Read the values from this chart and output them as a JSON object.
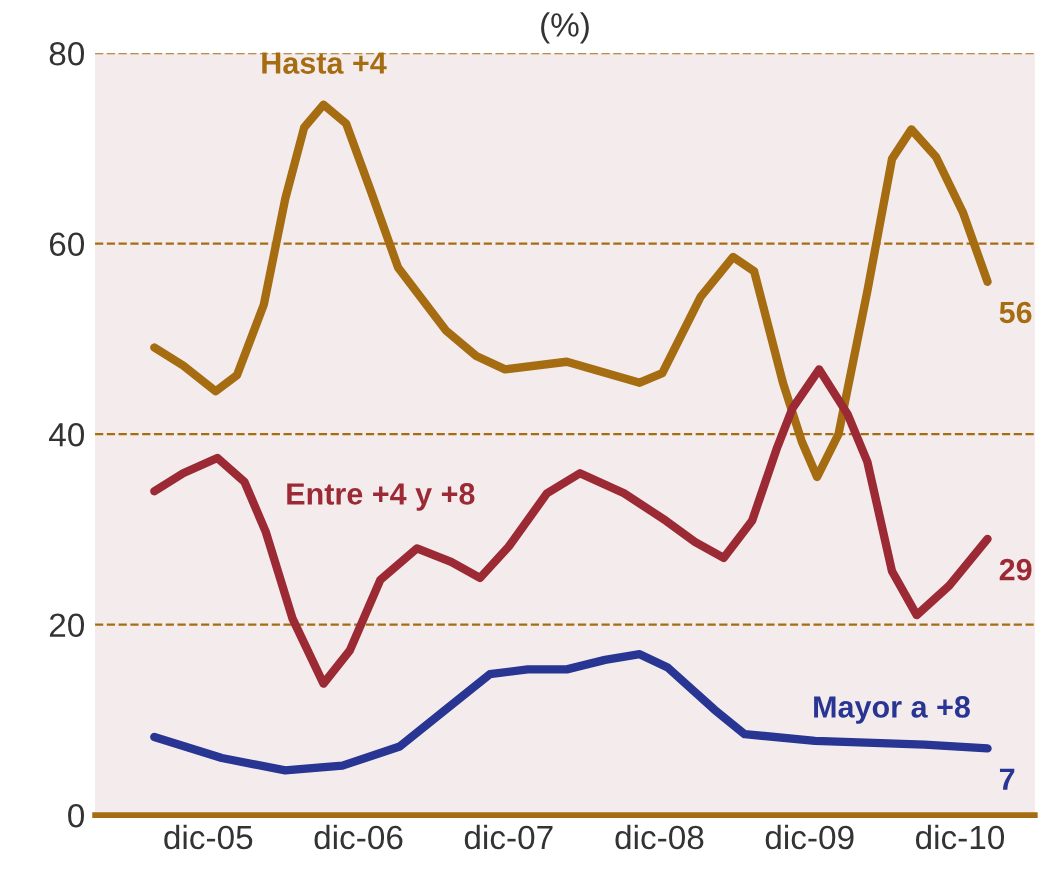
{
  "chart_data": {
    "type": "line",
    "title": "(%)",
    "xlim": [
      "2005-03",
      "2011-06"
    ],
    "xticks": [
      {
        "value": "2005-12",
        "label": "dic-05"
      },
      {
        "value": "2006-12",
        "label": "dic-06"
      },
      {
        "value": "2007-12",
        "label": "dic-07"
      },
      {
        "value": "2008-12",
        "label": "dic-08"
      },
      {
        "value": "2009-12",
        "label": "dic-09"
      },
      {
        "value": "2010-12",
        "label": "dic-10"
      }
    ],
    "ylim": [
      0,
      80
    ],
    "yticks": [
      0,
      20,
      40,
      60,
      80
    ],
    "grid": "y",
    "legend": false,
    "marker": "none",
    "line_style": "solid",
    "series": [
      {
        "name": "Hasta +4",
        "color": "#a66c12",
        "x": [
          "2005-07-23",
          "2005-10-01",
          "2005-12-19",
          "2006-02-09",
          "2006-04-15",
          "2006-06-06",
          "2006-07-22",
          "2006-09-07",
          "2006-11-01",
          "2007-01-01",
          "2007-03-07",
          "2007-07-01",
          "2007-09-13",
          "2007-11-22",
          "2008-04-20",
          "2008-10-14",
          "2008-12-08",
          "2009-03-11",
          "2009-05-29",
          "2009-07-19",
          "2009-09-27",
          "2009-11-12",
          "2009-12-19",
          "2010-02-09",
          "2010-04-20",
          "2010-06-19",
          "2010-08-05",
          "2010-10-04",
          "2010-12-08",
          "2011-02-06"
        ],
        "values": [
          49.1,
          47.2,
          44.5,
          46.2,
          53.6,
          64.7,
          72.2,
          74.6,
          72.6,
          65.4,
          57.5,
          50.9,
          48.2,
          46.8,
          47.6,
          45.4,
          46.4,
          54.4,
          58.6,
          57.1,
          45.4,
          39.2,
          35.5,
          40,
          55,
          68.9,
          72,
          69.1,
          63.3,
          56
        ],
        "value_labels": [
          null,
          null,
          null,
          null,
          null,
          null,
          null,
          null,
          null,
          null,
          null,
          null,
          null,
          null,
          null,
          null,
          null,
          null,
          null,
          null,
          null,
          null,
          null,
          null,
          null,
          null,
          null,
          null,
          null,
          "56"
        ]
      },
      {
        "name": "Entre +4 y +8",
        "color": "#9b2a35",
        "x": [
          "2005-07-23",
          "2005-10-01",
          "2005-12-23",
          "2006-02-27",
          "2006-04-20",
          "2006-06-24",
          "2006-09-07",
          "2006-11-10",
          "2007-01-23",
          "2007-04-22",
          "2007-07-14",
          "2007-09-22",
          "2007-12-01",
          "2008-03-03",
          "2008-05-22",
          "2008-09-06",
          "2008-12-17",
          "2009-02-25",
          "2009-05-06",
          "2009-07-14",
          "2009-09-13",
          "2009-10-20",
          "2009-12-24",
          "2010-03-03",
          "2010-04-20",
          "2010-06-19",
          "2010-08-18",
          "2010-11-05",
          "2011-02-06"
        ],
        "values": [
          34,
          35.9,
          37.5,
          35,
          29.7,
          20.6,
          13.8,
          17.3,
          24.7,
          28,
          26.6,
          24.9,
          28.2,
          33.8,
          35.9,
          33.8,
          30.9,
          28.7,
          27,
          30.9,
          38.6,
          42.7,
          46.8,
          42.1,
          37.1,
          25.6,
          21,
          24.1,
          29
        ],
        "value_labels": [
          null,
          null,
          null,
          null,
          null,
          null,
          null,
          null,
          null,
          null,
          null,
          null,
          null,
          null,
          null,
          null,
          null,
          null,
          null,
          null,
          null,
          null,
          null,
          null,
          null,
          null,
          null,
          null,
          "29"
        ]
      },
      {
        "name": "Mayor a +8",
        "color": "#283593",
        "x": [
          "2005-07-23",
          "2006-01-03",
          "2006-06-06",
          "2006-10-23",
          "2007-03-11",
          "2007-07-01",
          "2007-10-16",
          "2008-01-16",
          "2008-04-20",
          "2008-07-22",
          "2008-10-14",
          "2008-12-21",
          "2009-04-13",
          "2009-06-26",
          "2009-12-14",
          "2010-09-06",
          "2011-02-06"
        ],
        "values": [
          8.2,
          6,
          4.7,
          5.2,
          7.2,
          11.1,
          14.8,
          15.3,
          15.3,
          16.3,
          16.9,
          15.5,
          11.1,
          8.5,
          7.8,
          7.4,
          7
        ],
        "value_labels": [
          null,
          null,
          null,
          null,
          null,
          null,
          null,
          null,
          null,
          null,
          null,
          null,
          null,
          null,
          null,
          null,
          "7"
        ]
      }
    ]
  }
}
